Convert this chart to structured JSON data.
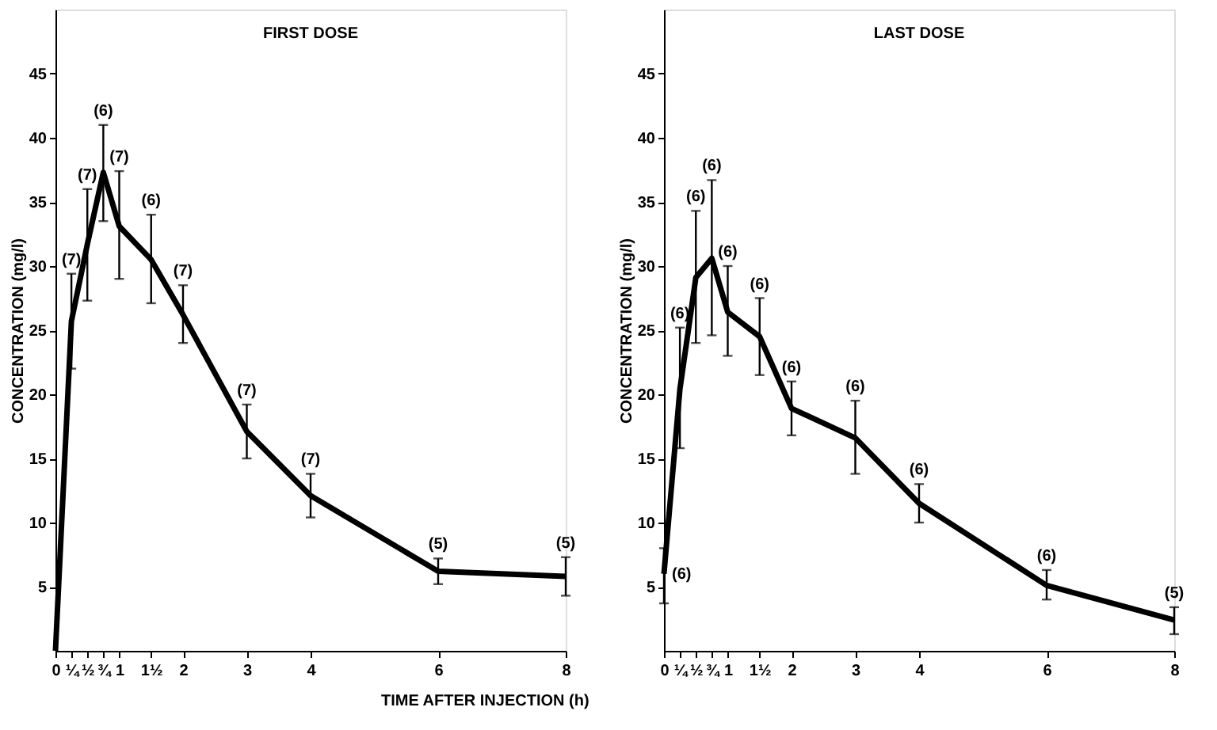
{
  "chart_data": [
    {
      "type": "line",
      "title": "FIRST DOSE",
      "ylabel": "CONCENTRATION (mg/l)",
      "xlabel": "TIME AFTER INJECTION (h)",
      "x": [
        0,
        0.25,
        0.5,
        0.75,
        1,
        1.5,
        2,
        3,
        4,
        6,
        8
      ],
      "series": [
        {
          "color": "#000000",
          "values": [
            0,
            25.7,
            31.7,
            37.3,
            33.1,
            30.5,
            26.2,
            17.1,
            12.1,
            6.2,
            5.8
          ],
          "errors": [
            null,
            [
              22,
              29.4
            ],
            [
              27.3,
              36
            ],
            [
              33.5,
              41
            ],
            [
              29,
              37.4
            ],
            [
              27.1,
              34
            ],
            [
              24,
              28.5
            ],
            [
              15,
              19.2
            ],
            [
              10.4,
              13.8
            ],
            [
              5.2,
              7.2
            ],
            [
              4.3,
              7.3
            ]
          ]
        }
      ],
      "xlim": [
        0,
        8
      ],
      "ylim": [
        0,
        50
      ],
      "xticks": [
        0,
        {
          "value": 0.25,
          "label": "¼"
        },
        {
          "value": 0.5,
          "label": "½"
        },
        {
          "value": 0.75,
          "label": "¾"
        },
        1,
        {
          "value": 1.5,
          "label": "1½"
        },
        2,
        3,
        4,
        6,
        8
      ],
      "yticks": [
        5,
        10,
        15,
        20,
        25,
        30,
        35,
        40,
        45
      ],
      "annotations": [
        {
          "text": "(7)",
          "x": 0.25,
          "y": 29.4
        },
        {
          "text": "(7)",
          "x": 0.5,
          "y": 36
        },
        {
          "text": "(6)",
          "x": 0.75,
          "y": 41
        },
        {
          "text": "(7)",
          "x": 1,
          "y": 37.4
        },
        {
          "text": "(6)",
          "x": 1.5,
          "y": 34
        },
        {
          "text": "(7)",
          "x": 2,
          "y": 28.5
        },
        {
          "text": "(7)",
          "x": 3,
          "y": 19.2
        },
        {
          "text": "(7)",
          "x": 4,
          "y": 13.8
        },
        {
          "text": "(5)",
          "x": 6,
          "y": 7.2
        },
        {
          "text": "(5)",
          "x": 8,
          "y": 7.3
        }
      ]
    },
    {
      "type": "line",
      "title": "LAST DOSE",
      "ylabel": "CONCENTRATION (mg/l)",
      "x": [
        0,
        0.25,
        0.5,
        0.75,
        1,
        1.5,
        2,
        3,
        4,
        6,
        8
      ],
      "series": [
        {
          "color": "#000000",
          "values": [
            6.0,
            20.4,
            29.1,
            30.6,
            26.4,
            24.5,
            18.9,
            16.6,
            11.5,
            5.1,
            2.4
          ],
          "errors": [
            [
              3.7,
              8
            ],
            [
              15.8,
              25.2
            ],
            [
              24,
              34.3
            ],
            [
              24.6,
              36.7
            ],
            [
              23,
              30
            ],
            [
              21.5,
              27.5
            ],
            [
              16.8,
              21
            ],
            [
              13.8,
              19.5
            ],
            [
              10,
              13
            ],
            [
              4,
              6.3
            ],
            [
              1.3,
              3.4
            ]
          ]
        }
      ],
      "xlim": [
        0,
        8
      ],
      "ylim": [
        0,
        50
      ],
      "xticks": [
        0,
        {
          "value": 0.25,
          "label": "¼"
        },
        {
          "value": 0.5,
          "label": "½"
        },
        {
          "value": 0.75,
          "label": "¾"
        },
        1,
        {
          "value": 1.5,
          "label": "1½"
        },
        2,
        3,
        4,
        6,
        8
      ],
      "yticks": [
        5,
        10,
        15,
        20,
        25,
        30,
        35,
        40,
        45
      ],
      "annotations": [
        {
          "text": "(6)",
          "x": 0,
          "y": 6.0
        },
        {
          "text": "(6)",
          "x": 0.25,
          "y": 25.2
        },
        {
          "text": "(6)",
          "x": 0.5,
          "y": 34.3
        },
        {
          "text": "(6)",
          "x": 0.75,
          "y": 36.7
        },
        {
          "text": "(6)",
          "x": 1,
          "y": 30
        },
        {
          "text": "(6)",
          "x": 1.5,
          "y": 27.5
        },
        {
          "text": "(6)",
          "x": 2,
          "y": 21
        },
        {
          "text": "(6)",
          "x": 3,
          "y": 19.5
        },
        {
          "text": "(6)",
          "x": 4,
          "y": 13
        },
        {
          "text": "(6)",
          "x": 6,
          "y": 6.3
        },
        {
          "text": "(5)",
          "x": 8,
          "y": 3.4
        }
      ]
    }
  ]
}
